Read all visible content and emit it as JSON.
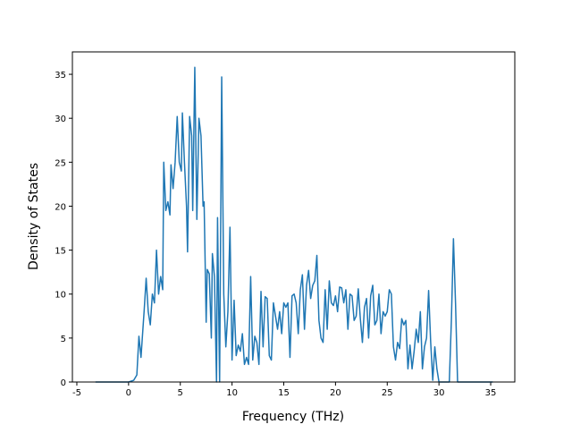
{
  "chart_data": {
    "type": "line",
    "xlabel": "Frequency (THz)",
    "ylabel": "Density of States",
    "x": [
      -3.2,
      0,
      0.5,
      0.8,
      1.0,
      1.2,
      1.5,
      1.7,
      1.9,
      2.1,
      2.3,
      2.5,
      2.7,
      2.9,
      3.1,
      3.3,
      3.4,
      3.6,
      3.8,
      4.0,
      4.1,
      4.3,
      4.5,
      4.7,
      4.9,
      5.1,
      5.2,
      5.4,
      5.6,
      5.7,
      5.9,
      6.1,
      6.2,
      6.4,
      6.6,
      6.8,
      7.0,
      7.2,
      7.3,
      7.5,
      7.6,
      7.8,
      8.0,
      8.1,
      8.3,
      8.5,
      8.6,
      8.8,
      9.0,
      9.2,
      9.4,
      9.6,
      9.8,
      10.0,
      10.2,
      10.4,
      10.6,
      10.8,
      11.0,
      11.2,
      11.4,
      11.6,
      11.8,
      12.0,
      12.2,
      12.4,
      12.6,
      12.8,
      13.0,
      13.2,
      13.4,
      13.6,
      13.8,
      14.0,
      14.2,
      14.4,
      14.6,
      14.8,
      15.0,
      15.2,
      15.4,
      15.6,
      15.8,
      16.0,
      16.2,
      16.4,
      16.6,
      16.8,
      17.0,
      17.2,
      17.4,
      17.6,
      17.8,
      18.0,
      18.2,
      18.4,
      18.6,
      18.8,
      19.0,
      19.2,
      19.4,
      19.6,
      19.8,
      20.0,
      20.2,
      20.4,
      20.6,
      20.8,
      21.0,
      21.2,
      21.4,
      21.6,
      21.8,
      22.0,
      22.2,
      22.4,
      22.6,
      22.8,
      23.0,
      23.2,
      23.4,
      23.6,
      23.8,
      24.0,
      24.2,
      24.4,
      24.6,
      24.8,
      25.0,
      25.2,
      25.4,
      25.6,
      25.8,
      26.0,
      26.2,
      26.4,
      26.6,
      26.8,
      27.0,
      27.2,
      27.4,
      27.6,
      27.8,
      28.0,
      28.2,
      28.4,
      28.6,
      28.8,
      29.0,
      29.2,
      29.4,
      29.6,
      29.8,
      30.0,
      31.0,
      31.2,
      31.4,
      31.6,
      31.8,
      35.2
    ],
    "series": [
      {
        "name": "DOS",
        "color": "#1f77b4",
        "values": [
          0,
          0,
          0.2,
          0.8,
          5.2,
          2.8,
          8,
          11.8,
          8,
          6.5,
          10,
          9,
          15,
          10,
          12,
          10.5,
          25,
          19.5,
          20.5,
          19,
          24.7,
          22,
          25,
          30.2,
          25,
          24,
          30.6,
          25,
          20,
          14.8,
          30.2,
          28,
          19.5,
          35.8,
          18.5,
          30,
          28,
          20,
          20.5,
          6.8,
          12.8,
          12.3,
          5,
          14.6,
          12,
          0,
          18.7,
          0,
          34.7,
          10,
          4,
          8,
          17.6,
          2.5,
          9.3,
          3,
          4.2,
          3.5,
          5.5,
          2,
          2.8,
          2,
          12,
          2.5,
          5.2,
          4.5,
          2,
          10.3,
          4,
          9.7,
          9.5,
          3,
          2.5,
          9,
          7.5,
          6,
          8,
          5.5,
          9,
          8.5,
          9,
          2.8,
          9.8,
          10,
          9,
          5.5,
          10.5,
          12.2,
          6,
          11,
          12.7,
          9.5,
          11,
          11.5,
          14.4,
          7,
          5,
          4.5,
          10.5,
          6,
          11.5,
          9,
          8.7,
          9.8,
          8,
          10.8,
          10.7,
          9,
          10.5,
          6,
          10,
          9.8,
          7,
          7.5,
          10.6,
          7.2,
          4.5,
          8.5,
          9.5,
          5,
          9.8,
          11,
          6.5,
          7,
          10,
          5.5,
          8,
          7.5,
          8,
          10.5,
          10,
          4,
          2.5,
          4.5,
          3.8,
          7.2,
          6.5,
          7,
          1.5,
          4.2,
          1.5,
          3.5,
          6,
          4.5,
          8,
          1.5,
          4,
          5,
          10.4,
          4.5,
          0.2,
          4,
          1.5,
          0,
          0,
          7,
          16.3,
          9,
          0,
          0
        ]
      }
    ],
    "xlim": [
      -5.43,
      37.33
    ],
    "ylim": [
      0,
      37.55
    ],
    "xticks": [
      -5,
      0,
      5,
      10,
      15,
      20,
      25,
      30,
      35
    ],
    "yticks": [
      0,
      5,
      10,
      15,
      20,
      25,
      30,
      35
    ]
  }
}
